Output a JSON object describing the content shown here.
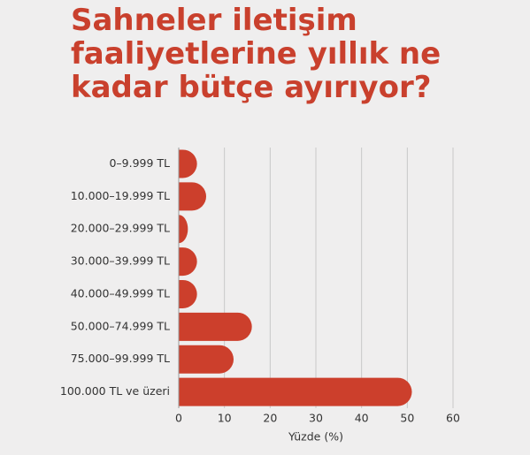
{
  "chart_data": {
    "type": "bar",
    "orientation": "horizontal",
    "title": "Sahneler iletişim faaliyetlerine yıllık ne kadar bütçe ayırıyor?",
    "categories": [
      "0–9.999 TL",
      "10.000–19.999 TL",
      "20.000–29.999 TL",
      "30.000–39.999 TL",
      "40.000–49.999 TL",
      "50.000–74.999 TL",
      "75.000–99.999 TL",
      "100.000 TL ve üzeri"
    ],
    "values": [
      4,
      6,
      2,
      4,
      4,
      16,
      12,
      51
    ],
    "color": "#cc3f2c",
    "xlabel": "Yüzde (%)",
    "xlim": [
      0,
      60
    ],
    "xticks": [
      0,
      10,
      20,
      30,
      40,
      50,
      60
    ],
    "grid": true
  }
}
